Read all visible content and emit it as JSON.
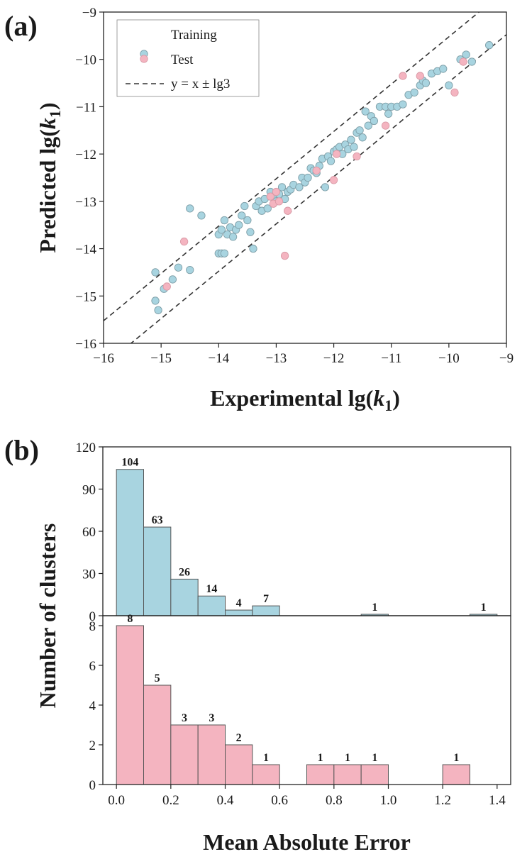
{
  "chart_data": [
    {
      "panel": "(a)",
      "type": "scatter",
      "xlabel": "Experimental lg(k1)",
      "ylabel": "Predicted lg(k1)",
      "label_prefix": "lg(",
      "label_var": "k",
      "label_sub": "1",
      "label_suffix": ")",
      "xlim": [
        -16,
        -9
      ],
      "ylim": [
        -16,
        -9
      ],
      "xticks": [
        -16,
        -15,
        -14,
        -13,
        -12,
        -11,
        -10,
        -9
      ],
      "yticks": [
        -16,
        -15,
        -14,
        -13,
        -12,
        -11,
        -10,
        -9
      ],
      "legend": [
        "Training",
        "Test",
        "y = x ± lg3"
      ],
      "legend_position": "top-left",
      "band_offset": 0.477,
      "colors": {
        "training": "#a8d4e0",
        "test": "#f4b4c0",
        "line": "#333333"
      },
      "series": [
        {
          "name": "Training",
          "points": [
            [
              -15.1,
              -14.5
            ],
            [
              -15.1,
              -15.1
            ],
            [
              -15.05,
              -15.3
            ],
            [
              -14.95,
              -14.85
            ],
            [
              -14.8,
              -14.65
            ],
            [
              -14.7,
              -14.4
            ],
            [
              -14.5,
              -13.15
            ],
            [
              -14.5,
              -14.45
            ],
            [
              -14.3,
              -13.3
            ],
            [
              -14.0,
              -14.1
            ],
            [
              -13.95,
              -14.1
            ],
            [
              -13.9,
              -14.1
            ],
            [
              -14.0,
              -13.7
            ],
            [
              -13.95,
              -13.6
            ],
            [
              -13.9,
              -13.4
            ],
            [
              -13.85,
              -13.7
            ],
            [
              -13.8,
              -13.55
            ],
            [
              -13.75,
              -13.75
            ],
            [
              -13.7,
              -13.6
            ],
            [
              -13.65,
              -13.5
            ],
            [
              -13.6,
              -13.3
            ],
            [
              -13.55,
              -13.1
            ],
            [
              -13.5,
              -13.4
            ],
            [
              -13.45,
              -13.65
            ],
            [
              -13.4,
              -14.0
            ],
            [
              -13.35,
              -13.1
            ],
            [
              -13.3,
              -13.0
            ],
            [
              -13.25,
              -13.2
            ],
            [
              -13.2,
              -12.95
            ],
            [
              -13.15,
              -13.15
            ],
            [
              -13.1,
              -12.8
            ],
            [
              -13.05,
              -12.9
            ],
            [
              -13.0,
              -13.0
            ],
            [
              -12.95,
              -12.85
            ],
            [
              -12.9,
              -12.7
            ],
            [
              -12.85,
              -12.95
            ],
            [
              -12.8,
              -12.8
            ],
            [
              -12.75,
              -12.75
            ],
            [
              -12.7,
              -12.65
            ],
            [
              -12.6,
              -12.7
            ],
            [
              -12.55,
              -12.5
            ],
            [
              -12.5,
              -12.6
            ],
            [
              -12.45,
              -12.5
            ],
            [
              -12.4,
              -12.3
            ],
            [
              -12.35,
              -12.35
            ],
            [
              -12.3,
              -12.4
            ],
            [
              -12.25,
              -12.25
            ],
            [
              -12.2,
              -12.1
            ],
            [
              -12.15,
              -12.7
            ],
            [
              -12.1,
              -12.05
            ],
            [
              -12.05,
              -12.15
            ],
            [
              -12.0,
              -11.95
            ],
            [
              -11.95,
              -11.9
            ],
            [
              -11.9,
              -11.85
            ],
            [
              -11.85,
              -12.0
            ],
            [
              -11.8,
              -11.8
            ],
            [
              -11.75,
              -11.9
            ],
            [
              -11.7,
              -11.7
            ],
            [
              -11.65,
              -11.85
            ],
            [
              -11.6,
              -11.55
            ],
            [
              -11.55,
              -11.5
            ],
            [
              -11.5,
              -11.65
            ],
            [
              -11.45,
              -11.1
            ],
            [
              -11.4,
              -11.4
            ],
            [
              -11.35,
              -11.2
            ],
            [
              -11.3,
              -11.3
            ],
            [
              -11.2,
              -11.0
            ],
            [
              -11.1,
              -11.0
            ],
            [
              -11.05,
              -11.15
            ],
            [
              -11.0,
              -11.0
            ],
            [
              -10.9,
              -11.0
            ],
            [
              -10.8,
              -10.95
            ],
            [
              -10.7,
              -10.75
            ],
            [
              -10.6,
              -10.7
            ],
            [
              -10.5,
              -10.55
            ],
            [
              -10.45,
              -10.45
            ],
            [
              -10.4,
              -10.5
            ],
            [
              -10.3,
              -10.3
            ],
            [
              -10.2,
              -10.25
            ],
            [
              -10.1,
              -10.2
            ],
            [
              -10.0,
              -10.55
            ],
            [
              -9.8,
              -10.0
            ],
            [
              -9.7,
              -9.9
            ],
            [
              -9.6,
              -10.05
            ],
            [
              -9.3,
              -9.7
            ]
          ]
        },
        {
          "name": "Test",
          "points": [
            [
              -14.9,
              -14.8
            ],
            [
              -14.6,
              -13.85
            ],
            [
              -13.1,
              -12.9
            ],
            [
              -13.05,
              -13.05
            ],
            [
              -13.0,
              -12.8
            ],
            [
              -12.95,
              -13.0
            ],
            [
              -12.85,
              -14.15
            ],
            [
              -12.8,
              -13.2
            ],
            [
              -12.3,
              -12.35
            ],
            [
              -12.0,
              -12.55
            ],
            [
              -11.95,
              -12.0
            ],
            [
              -11.6,
              -12.05
            ],
            [
              -11.1,
              -11.4
            ],
            [
              -10.8,
              -10.35
            ],
            [
              -10.5,
              -10.35
            ],
            [
              -9.9,
              -10.7
            ],
            [
              -9.75,
              -10.05
            ]
          ]
        }
      ]
    },
    {
      "panel": "(b)",
      "type": "bar",
      "xlabel": "Mean Absolute Error",
      "ylabel": "Number of clusters",
      "xlim": [
        -0.05,
        1.45
      ],
      "xticks": [
        "0.0",
        "0.2",
        "0.4",
        "0.6",
        "0.8",
        "1.0",
        "1.2",
        "1.4"
      ],
      "bin_width": 0.1,
      "subplots": [
        {
          "name": "Training",
          "color": "#a8d4e0",
          "ylim": [
            0,
            120
          ],
          "yticks": [
            0,
            30,
            60,
            90,
            120
          ],
          "bins": [
            0.0,
            0.1,
            0.2,
            0.3,
            0.4,
            0.5,
            0.9,
            1.3
          ],
          "values": [
            104,
            63,
            26,
            14,
            4,
            7,
            1,
            1
          ]
        },
        {
          "name": "Test",
          "color": "#f4b4c0",
          "ylim": [
            0,
            8.5
          ],
          "yticks": [
            0,
            2,
            4,
            6,
            8
          ],
          "bins": [
            0.0,
            0.1,
            0.2,
            0.3,
            0.4,
            0.5,
            0.7,
            0.8,
            0.9,
            1.2
          ],
          "values": [
            8,
            5,
            3,
            3,
            2,
            1,
            1,
            1,
            1,
            1
          ]
        }
      ]
    }
  ]
}
